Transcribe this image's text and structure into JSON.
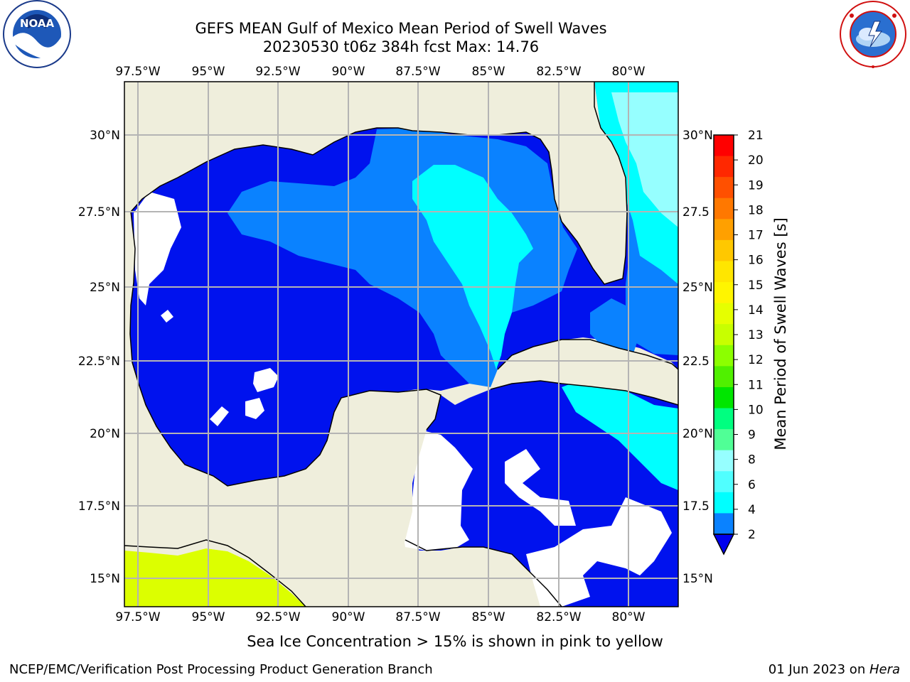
{
  "title": {
    "line1": "GEFS MEAN Gulf of Mexico Mean Period of Swell Waves",
    "line2": "20230530 t06z 384h fcst   Max: 14.76"
  },
  "logos": {
    "left": {
      "icon": "noaa-logo",
      "text": "NOAA",
      "ring_text": "NATIONAL OCEANIC AND ATMOSPHERIC ADMINISTRATION · U.S. DEPARTMENT OF COMMERCE"
    },
    "right": {
      "icon": "nws-logo",
      "ring_text": "NATIONAL WEATHER SERVICE"
    }
  },
  "map": {
    "lon_ticks": [
      "97.5°W",
      "95°W",
      "92.5°W",
      "90°W",
      "87.5°W",
      "85°W",
      "82.5°W",
      "80°W"
    ],
    "lat_ticks_left": [
      "30°N",
      "27.5°N",
      "25°N",
      "22.5°N",
      "20°N",
      "17.5°N",
      "15°N"
    ],
    "lat_ticks_right": [
      "30°N",
      "27.5",
      "25°N",
      "22.5",
      "20°N",
      "17.5",
      "15°N"
    ],
    "lon_range": [
      -98,
      -79
    ],
    "lat_range": [
      14,
      32
    ],
    "colors": {
      "land": "#efeedc",
      "ocean_2_4": "#0012ee",
      "ocean_4_6": "#0a82ff",
      "ocean_6_8": "#00ffff",
      "ocean_8_9": "#96ffff",
      "ice": "#dcff00",
      "grid": "#b4b4b4"
    }
  },
  "colorbar": {
    "label": "Mean Period of Swell Waves [s]",
    "ticks": [
      "21",
      "20",
      "19",
      "18",
      "17",
      "16",
      "15",
      "14",
      "13",
      "12",
      "11",
      "10",
      "9",
      "8",
      "6",
      "4",
      "2"
    ],
    "colors_top_to_bottom": [
      "#ff0000",
      "#ff2800",
      "#ff5000",
      "#ff7800",
      "#ffa000",
      "#ffc800",
      "#ffe600",
      "#fff500",
      "#e6ff00",
      "#c8ff00",
      "#8cff00",
      "#50f000",
      "#00e600",
      "#00ff80",
      "#50ff96",
      "#96ffff",
      "#50ffff",
      "#00ffff",
      "#0a82ff"
    ],
    "extend_color": "#0000ee"
  },
  "notes": {
    "ice": "Sea Ice Concentration > 15% is shown in pink to yellow"
  },
  "footer": {
    "left": "NCEP/EMC/Verification Post Processing Product Generation Branch",
    "date": "01 Jun 2023 on ",
    "machine": "Hera"
  }
}
